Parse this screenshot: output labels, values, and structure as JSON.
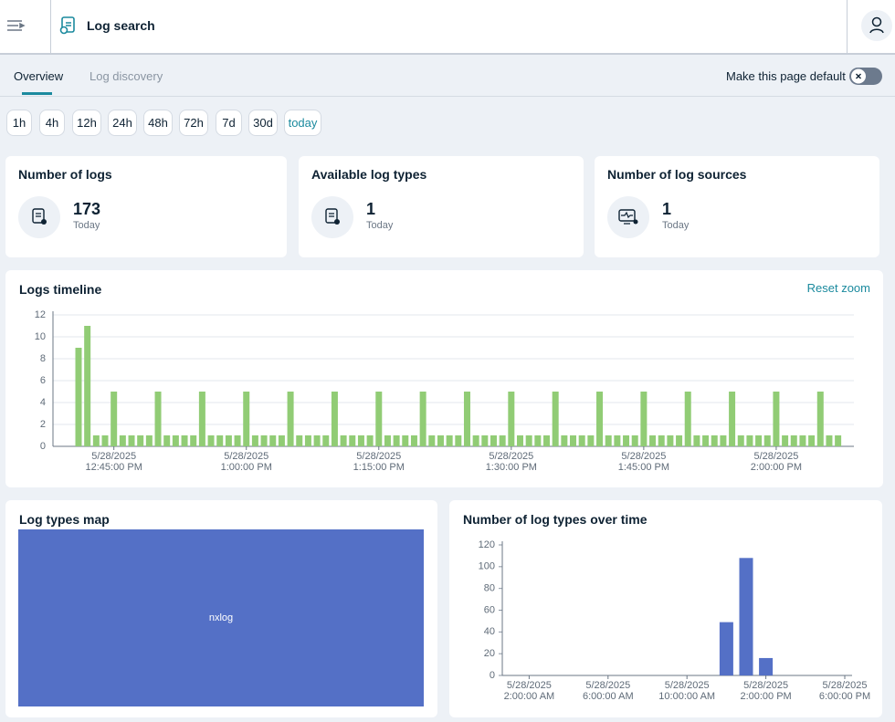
{
  "header": {
    "title": "Log search"
  },
  "tabs": [
    "Overview",
    "Log discovery"
  ],
  "default_toggle": "Make this page default",
  "time_ranges": [
    "1h",
    "4h",
    "12h",
    "24h",
    "48h",
    "72h",
    "7d",
    "30d",
    "today"
  ],
  "stats": [
    {
      "title": "Number of logs",
      "value": 173,
      "caption": "Today"
    },
    {
      "title": "Available log types",
      "value": 1,
      "caption": "Today"
    },
    {
      "title": "Number of log sources",
      "value": 1,
      "caption": "Today"
    }
  ],
  "chart_data": [
    {
      "type": "bar",
      "title": "Logs timeline",
      "action": "Reset zoom",
      "color": "#91cc75",
      "grid": true,
      "x": [
        "5/28/2025 12:41:00 PM",
        "5/28/2025 12:42:00 PM",
        "5/28/2025 12:43:00 PM",
        "5/28/2025 12:44:00 PM",
        "5/28/2025 12:45:00 PM",
        "5/28/2025 12:46:00 PM",
        "5/28/2025 12:47:00 PM",
        "5/28/2025 12:48:00 PM",
        "5/28/2025 12:49:00 PM",
        "5/28/2025 12:50:00 PM",
        "5/28/2025 12:51:00 PM",
        "5/28/2025 12:52:00 PM",
        "5/28/2025 12:53:00 PM",
        "5/28/2025 12:54:00 PM",
        "5/28/2025 12:55:00 PM",
        "5/28/2025 12:56:00 PM",
        "5/28/2025 12:57:00 PM",
        "5/28/2025 12:58:00 PM",
        "5/28/2025 12:59:00 PM",
        "5/28/2025 1:00:00 PM",
        "5/28/2025 1:01:00 PM",
        "5/28/2025 1:02:00 PM",
        "5/28/2025 1:03:00 PM",
        "5/28/2025 1:04:00 PM",
        "5/28/2025 1:05:00 PM",
        "5/28/2025 1:06:00 PM",
        "5/28/2025 1:07:00 PM",
        "5/28/2025 1:08:00 PM",
        "5/28/2025 1:09:00 PM",
        "5/28/2025 1:10:00 PM",
        "5/28/2025 1:11:00 PM",
        "5/28/2025 1:12:00 PM",
        "5/28/2025 1:13:00 PM",
        "5/28/2025 1:14:00 PM",
        "5/28/2025 1:15:00 PM",
        "5/28/2025 1:16:00 PM",
        "5/28/2025 1:17:00 PM",
        "5/28/2025 1:18:00 PM",
        "5/28/2025 1:19:00 PM",
        "5/28/2025 1:20:00 PM",
        "5/28/2025 1:21:00 PM",
        "5/28/2025 1:22:00 PM",
        "5/28/2025 1:23:00 PM",
        "5/28/2025 1:24:00 PM",
        "5/28/2025 1:25:00 PM",
        "5/28/2025 1:26:00 PM",
        "5/28/2025 1:27:00 PM",
        "5/28/2025 1:28:00 PM",
        "5/28/2025 1:29:00 PM",
        "5/28/2025 1:30:00 PM",
        "5/28/2025 1:31:00 PM",
        "5/28/2025 1:32:00 PM",
        "5/28/2025 1:33:00 PM",
        "5/28/2025 1:34:00 PM",
        "5/28/2025 1:35:00 PM",
        "5/28/2025 1:36:00 PM",
        "5/28/2025 1:37:00 PM",
        "5/28/2025 1:38:00 PM",
        "5/28/2025 1:39:00 PM",
        "5/28/2025 1:40:00 PM",
        "5/28/2025 1:41:00 PM",
        "5/28/2025 1:42:00 PM",
        "5/28/2025 1:43:00 PM",
        "5/28/2025 1:44:00 PM",
        "5/28/2025 1:45:00 PM",
        "5/28/2025 1:46:00 PM",
        "5/28/2025 1:47:00 PM",
        "5/28/2025 1:48:00 PM",
        "5/28/2025 1:49:00 PM",
        "5/28/2025 1:50:00 PM",
        "5/28/2025 1:51:00 PM",
        "5/28/2025 1:52:00 PM",
        "5/28/2025 1:53:00 PM",
        "5/28/2025 1:54:00 PM",
        "5/28/2025 1:55:00 PM",
        "5/28/2025 1:56:00 PM",
        "5/28/2025 1:57:00 PM",
        "5/28/2025 1:58:00 PM",
        "5/28/2025 1:59:00 PM",
        "5/28/2025 2:00:00 PM",
        "5/28/2025 2:01:00 PM",
        "5/28/2025 2:02:00 PM",
        "5/28/2025 2:03:00 PM",
        "5/28/2025 2:04:00 PM",
        "5/28/2025 2:05:00 PM",
        "5/28/2025 2:06:00 PM",
        "5/28/2025 2:07:00 PM"
      ],
      "values": [
        9,
        11,
        1,
        1,
        5,
        1,
        1,
        1,
        1,
        5,
        1,
        1,
        1,
        1,
        5,
        1,
        1,
        1,
        1,
        5,
        1,
        1,
        1,
        1,
        5,
        1,
        1,
        1,
        1,
        5,
        1,
        1,
        1,
        1,
        5,
        1,
        1,
        1,
        1,
        5,
        1,
        1,
        1,
        1,
        5,
        1,
        1,
        1,
        1,
        5,
        1,
        1,
        1,
        1,
        5,
        1,
        1,
        1,
        1,
        5,
        1,
        1,
        1,
        1,
        5,
        1,
        1,
        1,
        1,
        5,
        1,
        1,
        1,
        1,
        5,
        1,
        1,
        1,
        1,
        5,
        1,
        1,
        1,
        1,
        5,
        1,
        1
      ],
      "ylim": [
        0,
        12
      ],
      "yticks": [
        0,
        2,
        4,
        6,
        8,
        10,
        12
      ],
      "xticks": [
        "5/28/2025 12:45:00 PM",
        "5/28/2025 1:00:00 PM",
        "5/28/2025 1:15:00 PM",
        "5/28/2025 1:30:00 PM",
        "5/28/2025 1:45:00 PM",
        "5/28/2025 2:00:00 PM"
      ]
    },
    {
      "type": "treemap",
      "title": "Log types map",
      "categories": [
        "nxlog"
      ],
      "values": [
        173
      ],
      "color": "#5470c6"
    },
    {
      "type": "bar",
      "title": "Number of log types over time",
      "color": "#5470c6",
      "grid": false,
      "x": [
        "5/28/2025 1:00:00 AM",
        "5/28/2025 2:00:00 AM",
        "5/28/2025 3:00:00 AM",
        "5/28/2025 4:00:00 AM",
        "5/28/2025 5:00:00 AM",
        "5/28/2025 6:00:00 AM",
        "5/28/2025 7:00:00 AM",
        "5/28/2025 8:00:00 AM",
        "5/28/2025 9:00:00 AM",
        "5/28/2025 10:00:00 AM",
        "5/28/2025 11:00:00 AM",
        "5/28/2025 12:00:00 PM",
        "5/28/2025 1:00:00 PM",
        "5/28/2025 2:00:00 PM",
        "5/28/2025 3:00:00 PM",
        "5/28/2025 4:00:00 PM",
        "5/28/2025 5:00:00 PM",
        "5/28/2025 6:00:00 PM"
      ],
      "values": [
        0,
        0,
        0,
        0,
        0,
        0,
        0,
        0,
        0,
        0,
        0,
        49,
        108,
        16,
        0,
        0,
        0,
        0
      ],
      "ylim": [
        0,
        120
      ],
      "yticks": [
        0,
        20,
        40,
        60,
        80,
        100,
        120
      ],
      "xticks": [
        "5/28/2025 2:00:00 AM",
        "5/28/2025 6:00:00 AM",
        "5/28/2025 10:00:00 AM",
        "5/28/2025 2:00:00 PM",
        "5/28/2025 6:00:00 PM"
      ]
    }
  ]
}
